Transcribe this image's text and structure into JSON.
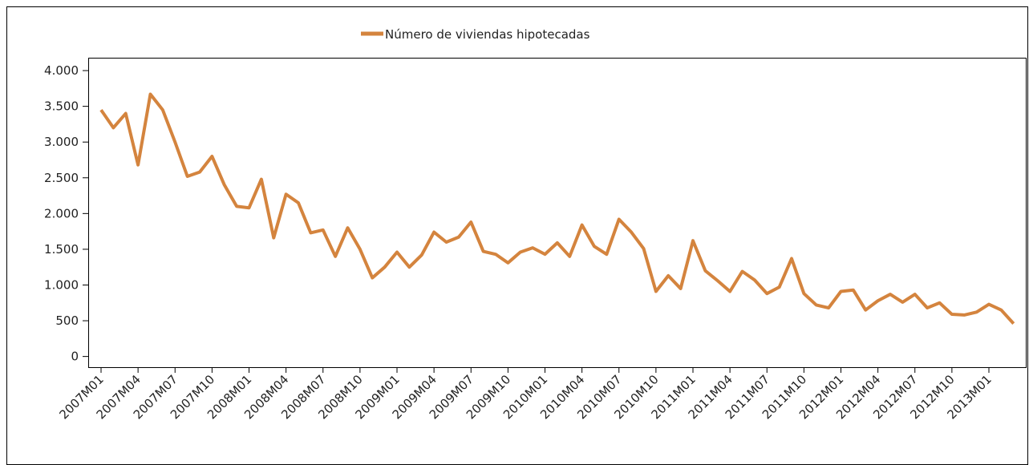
{
  "chart_data": {
    "type": "line",
    "categories": [
      "2007M01",
      null,
      null,
      "2007M04",
      null,
      null,
      "2007M07",
      null,
      null,
      "2007M10",
      null,
      null,
      "2008M01",
      null,
      null,
      "2008M04",
      null,
      null,
      "2008M07",
      null,
      null,
      "2008M10",
      null,
      null,
      "2009M01",
      null,
      null,
      "2009M04",
      null,
      null,
      "2009M07",
      null,
      null,
      "2009M10",
      null,
      null,
      "2010M01",
      null,
      null,
      "2010M04",
      null,
      null,
      "2010M07",
      null,
      null,
      "2010M10",
      null,
      null,
      "2011M01",
      null,
      null,
      "2011M04",
      null,
      null,
      "2011M07",
      null,
      null,
      "2011M10",
      null,
      null,
      "2012M01",
      null,
      null,
      "2012M04",
      null,
      null,
      "2012M07",
      null,
      null,
      "2012M10",
      null,
      null,
      "2013M01",
      null,
      null
    ],
    "series": [
      {
        "name": "Número de viviendas hipotecadas",
        "color": "#d4843e",
        "values": [
          3450,
          3200,
          3400,
          2680,
          3670,
          3450,
          3000,
          2520,
          2580,
          2800,
          2400,
          2100,
          2080,
          2480,
          1660,
          2270,
          2150,
          1730,
          1770,
          1400,
          1800,
          1500,
          1100,
          1250,
          1460,
          1250,
          1420,
          1740,
          1600,
          1670,
          1880,
          1470,
          1430,
          1310,
          1460,
          1520,
          1430,
          1590,
          1400,
          1840,
          1540,
          1430,
          1920,
          1740,
          1510,
          910,
          1130,
          950,
          1620,
          1200,
          1060,
          910,
          1190,
          1070,
          880,
          970,
          1370,
          880,
          720,
          680,
          910,
          930,
          650,
          780,
          870,
          760,
          870,
          680,
          750,
          590,
          580,
          620,
          730,
          650,
          460
        ]
      }
    ],
    "ylim": [
      -150,
      4180
    ],
    "yticks": [
      0,
      500,
      {
        "value": 1000,
        "label": "1.000"
      },
      {
        "value": 1500,
        "label": "1.500"
      },
      {
        "value": 2000,
        "label": "2.000"
      },
      {
        "value": 2500,
        "label": "2.500"
      },
      {
        "value": 3000,
        "label": "3.000"
      },
      {
        "value": 3500,
        "label": "3.500"
      },
      {
        "value": 4000,
        "label": "4.000"
      }
    ],
    "legend": "top",
    "grid": false
  }
}
